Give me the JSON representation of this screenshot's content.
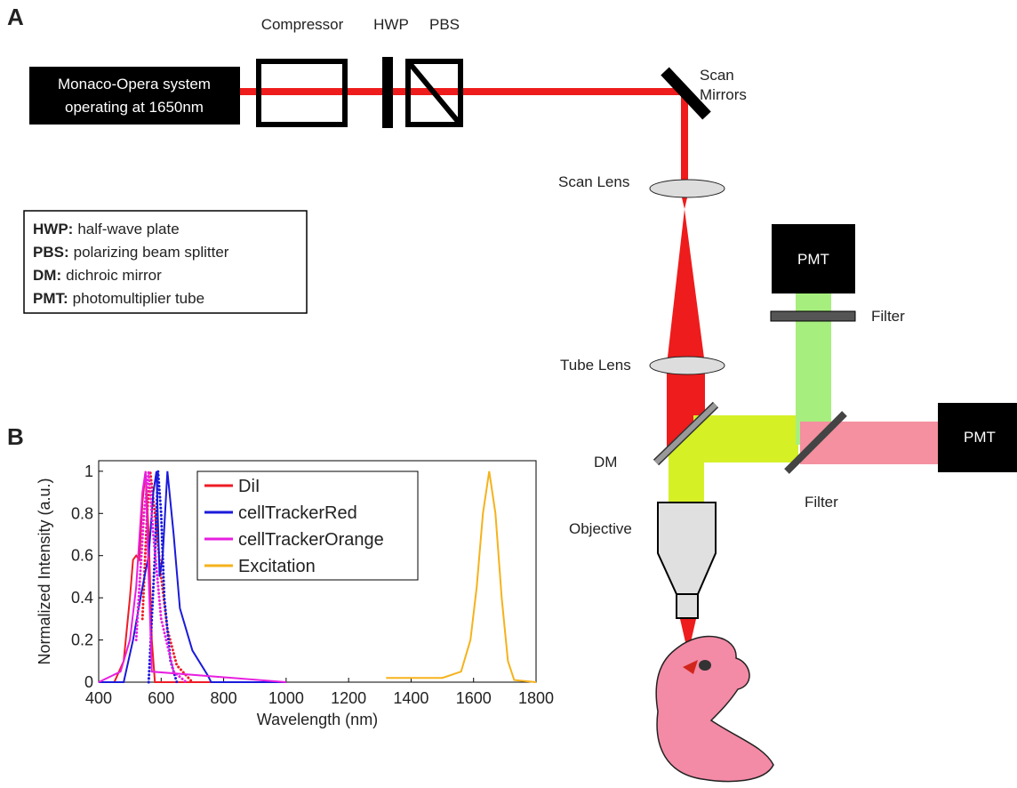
{
  "panel_a": {
    "label": "A",
    "laser": [
      "Monaco-Opera system",
      "operating at 1650nm"
    ],
    "compressor": "Compressor",
    "hwp": "HWP",
    "pbs": "PBS",
    "scan_mirrors": [
      "Scan",
      "Mirrors"
    ],
    "scan_lens": "Scan Lens",
    "tube_lens": "Tube Lens",
    "dm": "DM",
    "objective": "Objective",
    "filter_top": "Filter",
    "filter_right": "Filter",
    "pmt_top": "PMT",
    "pmt_right": "PMT",
    "key": [
      [
        "HWP:",
        "half-wave plate"
      ],
      [
        "PBS:",
        "polarizing beam splitter"
      ],
      [
        "DM:",
        "dichroic mirror"
      ],
      [
        "PMT:",
        "photomultiplier tube"
      ]
    ]
  },
  "chart_data": {
    "type": "line",
    "panel_label": "B",
    "xlabel": "Wavelength (nm)",
    "ylabel": "Normalized Intensity (a.u.)",
    "xlim": [
      400,
      1800
    ],
    "ylim": [
      0,
      1.05
    ],
    "xticks": [
      400,
      600,
      800,
      1000,
      1200,
      1400,
      1600,
      1800
    ],
    "yticks": [
      0,
      0.2,
      0.4,
      0.6,
      0.8,
      1
    ],
    "legend": "upper center",
    "series": [
      {
        "name": "DiI",
        "color": "#ee1c25",
        "x": [
          400,
          450,
          480,
          500,
          510,
          520,
          530,
          540,
          550,
          560,
          570,
          580,
          1000
        ],
        "values": [
          0,
          0,
          0.1,
          0.4,
          0.58,
          0.6,
          0.58,
          0.85,
          1,
          0.7,
          0.2,
          0,
          0
        ],
        "emission_x": [
          540,
          555,
          565,
          580,
          600,
          620,
          650,
          700
        ],
        "emission_values": [
          0.3,
          0.8,
          1,
          0.8,
          0.5,
          0.25,
          0.08,
          0
        ]
      },
      {
        "name": "cellTrackerRed",
        "color": "#1a1adb",
        "x": [
          400,
          480,
          510,
          540,
          560,
          575,
          585,
          595,
          605,
          620,
          640,
          660,
          700,
          750,
          760,
          1000
        ],
        "values": [
          0,
          0,
          0.2,
          0.45,
          0.6,
          0.9,
          1,
          0.5,
          0.6,
          1,
          0.7,
          0.35,
          0.15,
          0.03,
          0,
          0
        ],
        "emission_x": [
          560,
          580,
          590,
          600,
          610,
          630,
          650
        ],
        "emission_values": [
          0,
          0.6,
          1,
          0.8,
          0.4,
          0.1,
          0
        ]
      },
      {
        "name": "cellTrackerOrange",
        "color": "#e81ee0",
        "x": [
          400,
          470,
          500,
          520,
          540,
          550,
          560,
          570,
          1000
        ],
        "values": [
          0,
          0.05,
          0.2,
          0.45,
          0.9,
          1,
          0.5,
          0.05,
          0
        ],
        "emission_x": [
          520,
          545,
          560,
          575,
          600,
          640,
          680
        ],
        "emission_values": [
          0.2,
          0.8,
          1,
          0.7,
          0.3,
          0.05,
          0
        ]
      },
      {
        "name": "Excitation",
        "color": "#f5b21c",
        "x": [
          1320,
          1400,
          1500,
          1560,
          1590,
          1610,
          1630,
          1650,
          1670,
          1690,
          1710,
          1730,
          1800
        ],
        "values": [
          0.02,
          0.02,
          0.02,
          0.05,
          0.2,
          0.45,
          0.8,
          1,
          0.8,
          0.4,
          0.1,
          0.01,
          0
        ]
      }
    ]
  }
}
